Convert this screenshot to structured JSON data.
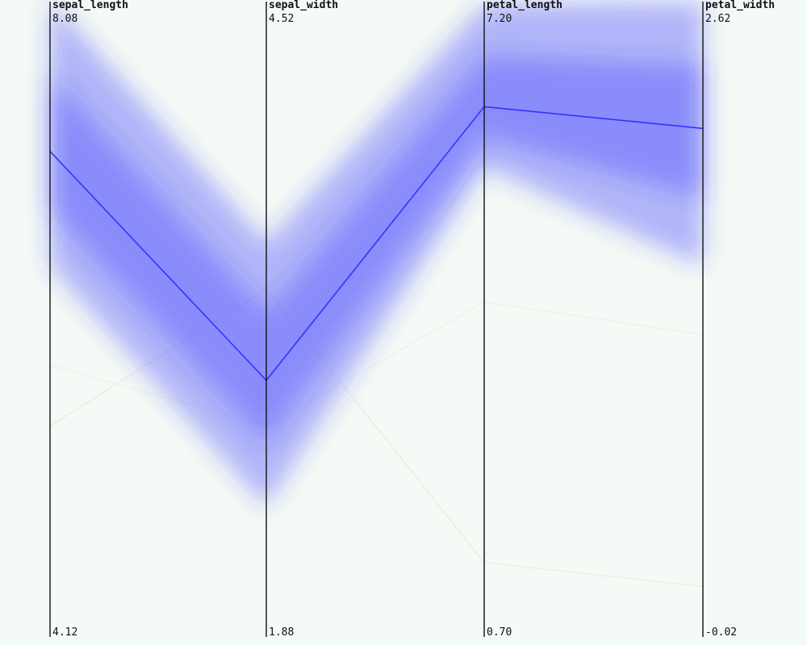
{
  "chart_data": {
    "type": "parallel_coordinates",
    "title": "",
    "axes": [
      {
        "name": "sepal_length",
        "max_label": "8.08",
        "min_label": "4.12",
        "range": [
          4.12,
          8.08
        ]
      },
      {
        "name": "sepal_width",
        "max_label": "4.52",
        "min_label": "1.88",
        "range": [
          1.88,
          4.52
        ]
      },
      {
        "name": "petal_length",
        "max_label": "7.20",
        "min_label": "0.70",
        "range": [
          0.7,
          7.2
        ]
      },
      {
        "name": "petal_width",
        "max_label": "2.62",
        "min_label": "-0.02",
        "range": [
          -0.02,
          2.62
        ]
      }
    ],
    "series": [
      {
        "mean": [
          7.3,
          3.0,
          6.4,
          2.2
        ],
        "band_low": [
          6.55,
          2.45,
          5.75,
          1.6
        ],
        "band_high": [
          8.3,
          3.6,
          7.5,
          2.75
        ],
        "color": "#3333ff"
      }
    ],
    "faint_lines": [
      {
        "values": [
          5.5,
          3.4,
          1.5,
          0.2
        ],
        "color": "#f2e8df"
      },
      {
        "values": [
          5.9,
          2.8,
          4.3,
          1.3
        ],
        "color": "#eef0ea"
      }
    ],
    "grid": false,
    "legend": "none"
  }
}
